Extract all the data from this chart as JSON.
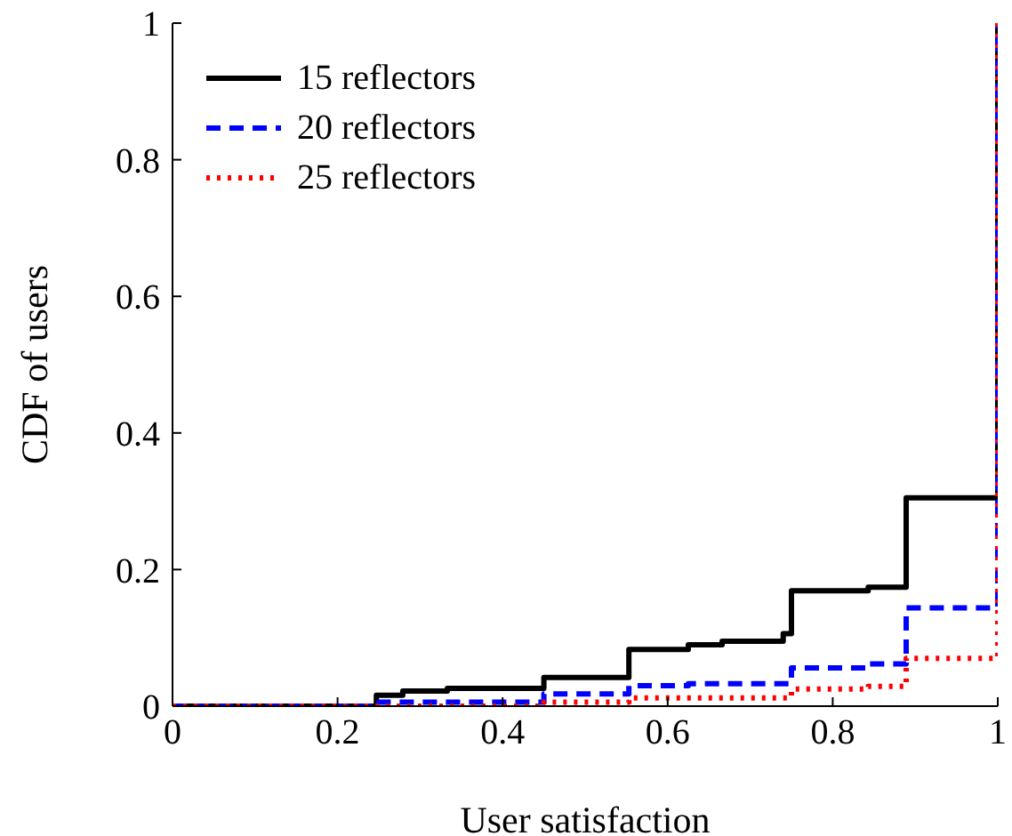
{
  "chart_data": {
    "type": "step",
    "xlabel": "User satisfaction",
    "ylabel": "CDF of users",
    "xlim": [
      0,
      1
    ],
    "ylim": [
      0,
      1
    ],
    "xticks": [
      0,
      0.2,
      0.4,
      0.6,
      0.8,
      1
    ],
    "yticks": [
      0,
      0.2,
      0.4,
      0.6,
      0.8,
      1
    ],
    "grid": false,
    "legend": "top left",
    "marker": "none",
    "series": [
      {
        "name": "15 reflectors",
        "color": "#000000",
        "line_style": "solid",
        "x": [
          0,
          0.247,
          0.279,
          0.333,
          0.45,
          0.553,
          0.625,
          0.666,
          0.74,
          0.75,
          0.843,
          0.889,
          1
        ],
        "values": [
          0,
          0.016,
          0.022,
          0.026,
          0.042,
          0.083,
          0.09,
          0.095,
          0.106,
          0.169,
          0.174,
          0.305,
          1
        ]
      },
      {
        "name": "20 reflectors",
        "color": "#0000ff",
        "line_style": "dashed",
        "x": [
          0,
          0.25,
          0.45,
          0.553,
          0.625,
          0.75,
          0.843,
          0.889,
          1
        ],
        "values": [
          0,
          0.006,
          0.018,
          0.03,
          0.033,
          0.056,
          0.062,
          0.144,
          1
        ]
      },
      {
        "name": "25 reflectors",
        "color": "#ff0000",
        "line_style": "dotted",
        "x": [
          0,
          0.45,
          0.553,
          0.75,
          0.843,
          0.889,
          1
        ],
        "values": [
          0,
          0.006,
          0.012,
          0.025,
          0.029,
          0.07,
          1
        ]
      }
    ]
  }
}
